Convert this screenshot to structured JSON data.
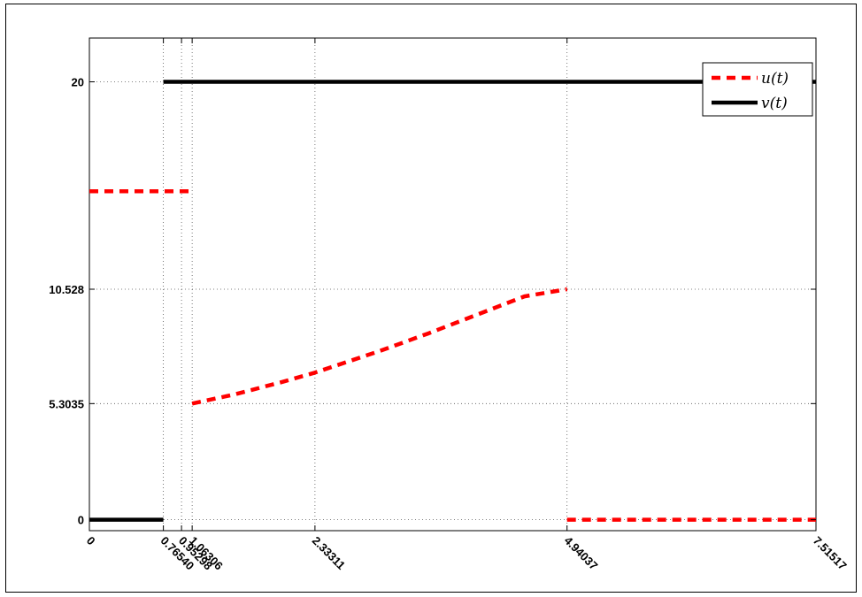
{
  "chart_data": {
    "type": "line",
    "title": "",
    "xlabel": "",
    "ylabel": "",
    "xlim": [
      0,
      7.51517
    ],
    "ylim": [
      -0.5,
      22
    ],
    "grid": "dotted",
    "legend_placement": "top-right",
    "x_ticks": [
      {
        "value": 0,
        "label": "0"
      },
      {
        "value": 0.7654,
        "label": "0.76540"
      },
      {
        "value": 0.95298,
        "label": "0.95298"
      },
      {
        "value": 1.06306,
        "label": "1.06306"
      },
      {
        "value": 2.33311,
        "label": "2.33311"
      },
      {
        "value": 4.94037,
        "label": "4.94037"
      },
      {
        "value": 7.51517,
        "label": "7.51517"
      }
    ],
    "y_ticks": [
      {
        "value": 0,
        "label": "0"
      },
      {
        "value": 5.3035,
        "label": "5.3035"
      },
      {
        "value": 10.528,
        "label": "10.528"
      },
      {
        "value": 20,
        "label": "20"
      }
    ],
    "series": [
      {
        "name": "u(t)",
        "color": "#ff0000",
        "style": "dashed",
        "segments": [
          [
            [
              0,
              15.0
            ],
            [
              1.06306,
              15.0
            ]
          ],
          [
            [
              1.06306,
              5.3035
            ],
            [
              1.5,
              5.72
            ],
            [
              2.0,
              6.3
            ],
            [
              2.33311,
              6.72
            ],
            [
              3.0,
              7.7
            ],
            [
              3.5,
              8.5
            ],
            [
              4.0,
              9.35
            ],
            [
              4.5,
              10.2
            ],
            [
              4.94037,
              10.528
            ]
          ],
          [
            [
              4.94037,
              0
            ],
            [
              7.51517,
              0
            ]
          ]
        ]
      },
      {
        "name": "v(t)",
        "color": "#000000",
        "style": "solid",
        "segments": [
          [
            [
              0,
              0
            ],
            [
              0.7654,
              0
            ]
          ],
          [
            [
              0.7654,
              20
            ],
            [
              7.51517,
              20
            ]
          ]
        ]
      }
    ]
  }
}
